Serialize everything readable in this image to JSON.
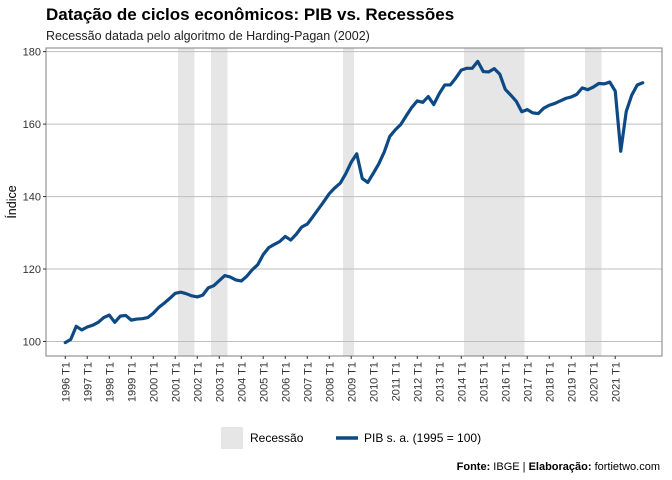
{
  "title": "Datação de ciclos econômicos: PIB vs. Recessões",
  "subtitle": "Recessão datada pelo algoritmo de Harding-Pagan (2002)",
  "caption": {
    "source_label": "Fonte:",
    "source_value": " IBGE | ",
    "author_label": "Elaboração:",
    "author_value": " fortietwo.com"
  },
  "colors": {
    "line": "#0d4a85",
    "recession": "#e6e6e6",
    "grid": "#bebebe",
    "frame": "#7f7f7f"
  },
  "chart_data": {
    "type": "line",
    "title": "Datação de ciclos econômicos: PIB vs. Recessões",
    "subtitle": "Recessão datada pelo algoritmo de Harding-Pagan (2002)",
    "xlabel": "",
    "ylabel": "Índice",
    "ylim": [
      96,
      181
    ],
    "yticks": [
      100,
      120,
      140,
      160,
      180
    ],
    "x_tick_labels": [
      "1996 T1",
      "1997 T1",
      "1998 T1",
      "1999 T1",
      "2000 T1",
      "2001 T1",
      "2002 T1",
      "2003 T1",
      "2004 T1",
      "2005 T1",
      "2006 T1",
      "2007 T1",
      "2008 T1",
      "2009 T1",
      "2010 T1",
      "2011 T1",
      "2012 T1",
      "2013 T1",
      "2014 T1",
      "2015 T1",
      "2016 T1",
      "2017 T1",
      "2018 T1",
      "2019 T1",
      "2020 T1",
      "2021 T1"
    ],
    "grid": true,
    "legend_position": "bottom",
    "legend": [
      {
        "label": "Recessão",
        "kind": "area",
        "color": "#e6e6e6"
      },
      {
        "label": "PIB s. a. (1995 = 100)",
        "kind": "line",
        "color": "#0d4a85"
      }
    ],
    "recessions": [
      {
        "start": "2001 T2",
        "end": "2001 T4"
      },
      {
        "start": "2002 T4",
        "end": "2003 T2"
      },
      {
        "start": "2008 T4",
        "end": "2009 T1"
      },
      {
        "start": "2014 T2",
        "end": "2016 T4"
      },
      {
        "start": "2019 T4",
        "end": "2020 T2"
      }
    ],
    "series": [
      {
        "name": "PIB s. a. (1995 = 100)",
        "x_start": "1996 T1",
        "x_end": "2021 T2",
        "values": [
          99.7,
          100.6,
          104.2,
          103.2,
          104.0,
          104.5,
          105.3,
          106.6,
          107.3,
          105.3,
          107.0,
          107.2,
          105.9,
          106.2,
          106.3,
          106.6,
          107.8,
          109.4,
          110.6,
          111.9,
          113.3,
          113.6,
          113.2,
          112.6,
          112.3,
          112.8,
          114.8,
          115.4,
          116.8,
          118.2,
          117.8,
          117.0,
          116.7,
          118.0,
          119.8,
          121.2,
          124.0,
          125.9,
          126.8,
          127.6,
          129.0,
          128.0,
          129.6,
          131.6,
          132.4,
          134.4,
          136.5,
          138.6,
          140.8,
          142.4,
          143.7,
          146.3,
          149.5,
          151.8,
          145.0,
          143.9,
          146.4,
          149.0,
          152.3,
          156.6,
          158.4,
          159.9,
          162.3,
          164.6,
          166.4,
          166.0,
          167.6,
          165.4,
          168.4,
          170.8,
          170.8,
          172.7,
          174.9,
          175.4,
          175.4,
          177.3,
          174.5,
          174.4,
          175.3,
          173.8,
          169.6,
          168.0,
          166.3,
          163.4,
          164.0,
          163.1,
          162.9,
          164.4,
          165.2,
          165.7,
          166.4,
          167.1,
          167.5,
          168.2,
          170.0,
          169.5,
          170.2,
          171.2,
          171.1,
          171.6,
          169.1,
          152.5,
          163.5,
          168.0,
          170.8,
          171.4
        ]
      }
    ]
  }
}
